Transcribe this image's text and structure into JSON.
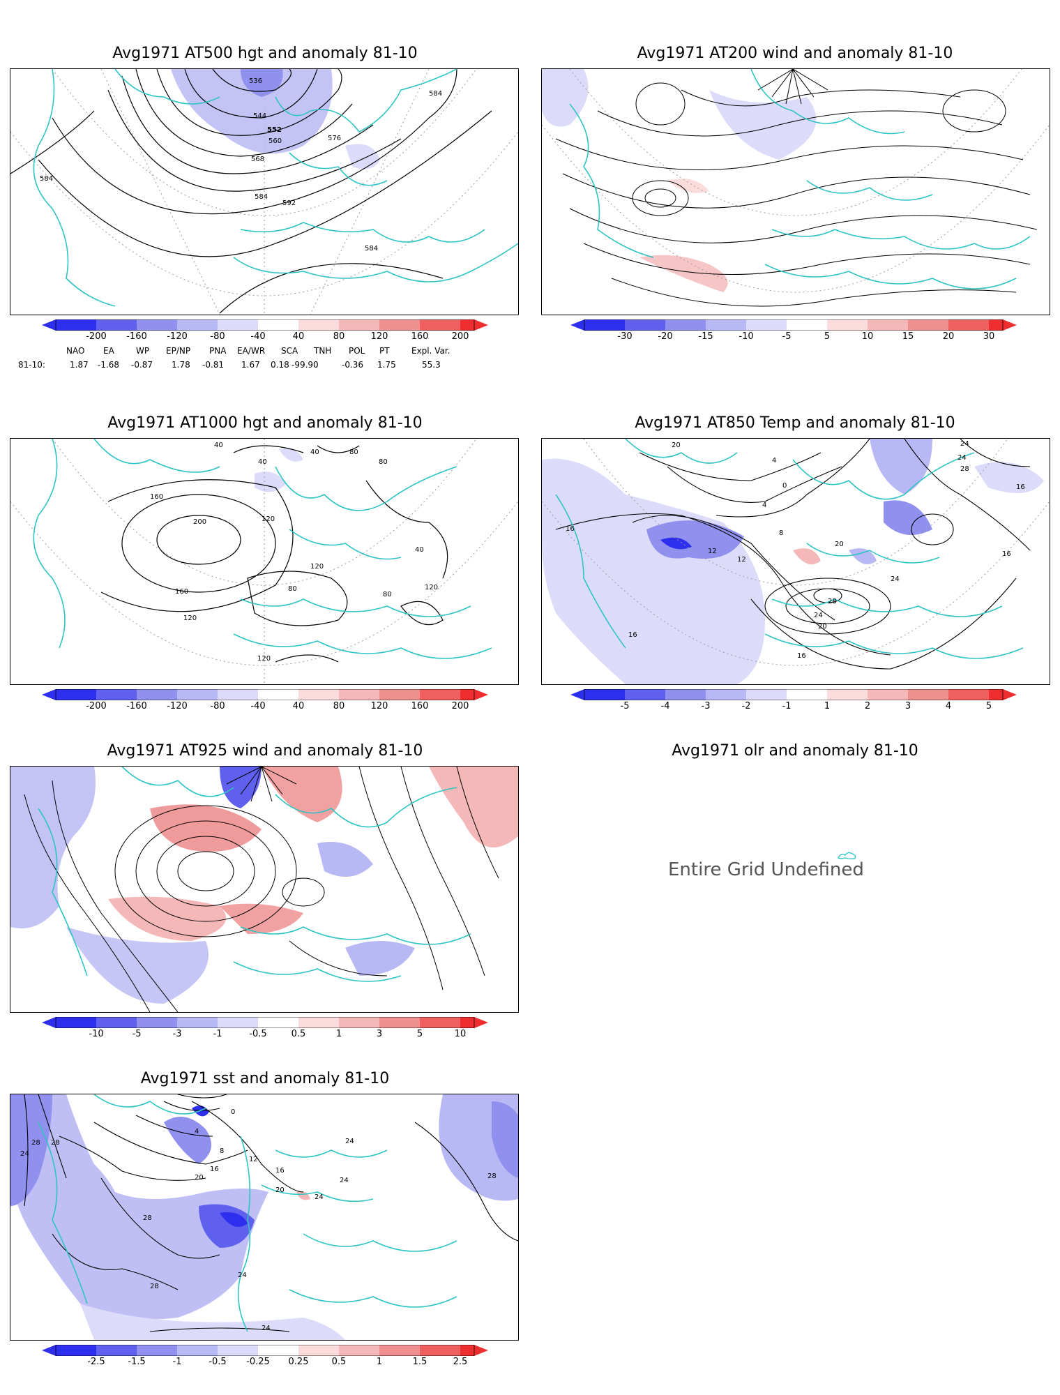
{
  "panels": {
    "p500": {
      "title": "Avg1971 AT500 hgt and anomaly 81-10",
      "contour_labels": [
        "536",
        "544",
        "552",
        "560",
        "568",
        "576",
        "584",
        "584",
        "584",
        "592",
        "584"
      ],
      "colorbar": [
        "-200",
        "-160",
        "-120",
        "-80",
        "-40",
        "40",
        "80",
        "120",
        "160",
        "200"
      ]
    },
    "p200": {
      "title": "Avg1971 AT200 wind and anomaly 81-10",
      "colorbar": [
        "-30",
        "-20",
        "-15",
        "-10",
        "-5",
        "5",
        "10",
        "15",
        "20",
        "30"
      ]
    },
    "p1000": {
      "title": "Avg1971 AT1000 hgt and anomaly 81-10",
      "contour_labels": [
        "40",
        "40",
        "40",
        "80",
        "80",
        "160",
        "200",
        "120",
        "120",
        "160",
        "120",
        "80",
        "80",
        "40",
        "120",
        "120"
      ],
      "colorbar": [
        "-200",
        "-160",
        "-120",
        "-80",
        "-40",
        "40",
        "80",
        "120",
        "160",
        "200"
      ]
    },
    "p850": {
      "title": "Avg1971 AT850 Temp and anomaly 81-10",
      "contour_labels": [
        "20",
        "4",
        "0",
        "4",
        "8",
        "12",
        "12",
        "16",
        "16",
        "20",
        "24",
        "28",
        "24",
        "20",
        "16",
        "16",
        "24",
        "24",
        "28",
        "16"
      ],
      "colorbar": [
        "-5",
        "-4",
        "-3",
        "-2",
        "-1",
        "1",
        "2",
        "3",
        "4",
        "5"
      ]
    },
    "p925": {
      "title": "Avg1971 AT925 wind and anomaly 81-10",
      "colorbar": [
        "-10",
        "-5",
        "-3",
        "-1",
        "-0.5",
        "0.5",
        "1",
        "3",
        "5",
        "10"
      ]
    },
    "polr": {
      "title": "Avg1971 olr and anomaly 81-10",
      "message": "Entire Grid Undefined"
    },
    "psst": {
      "title": "Avg1971 sst and anomaly 81-10",
      "contour_labels": [
        "24",
        "28",
        "28",
        "28",
        "20",
        "16",
        "12",
        "8",
        "4",
        "0",
        "16",
        "20",
        "24",
        "24",
        "24",
        "28",
        "24",
        "28",
        "24"
      ],
      "colorbar": [
        "-2.5",
        "-1.5",
        "-1",
        "-0.5",
        "-0.25",
        "0.25",
        "0.5",
        "1",
        "1.5",
        "2.5"
      ]
    }
  },
  "indices": {
    "headers": [
      "NAO",
      "EA",
      "WP",
      "EP/NP",
      "PNA",
      "EA/WR",
      "SCA",
      "TNH",
      "POL",
      "PT",
      "Expl. Var."
    ],
    "row_label": "81-10:",
    "values": [
      "1.87",
      "-1.68",
      "-0.87",
      "1.78",
      "-0.81",
      "1.67",
      "0.18",
      "-99.90",
      "-0.36",
      "1.75",
      "55.3"
    ]
  },
  "colors": {
    "neg": [
      "#2e2eee",
      "#6060ee",
      "#9090ee",
      "#b8b8f4",
      "#dcdcfa"
    ],
    "pos": [
      "#fadcdc",
      "#f4b8b8",
      "#ee9090",
      "#ee6060",
      "#ee2e2e"
    ],
    "coast": "#2ec4c4",
    "contour": "#000000",
    "grid": "#999999"
  }
}
